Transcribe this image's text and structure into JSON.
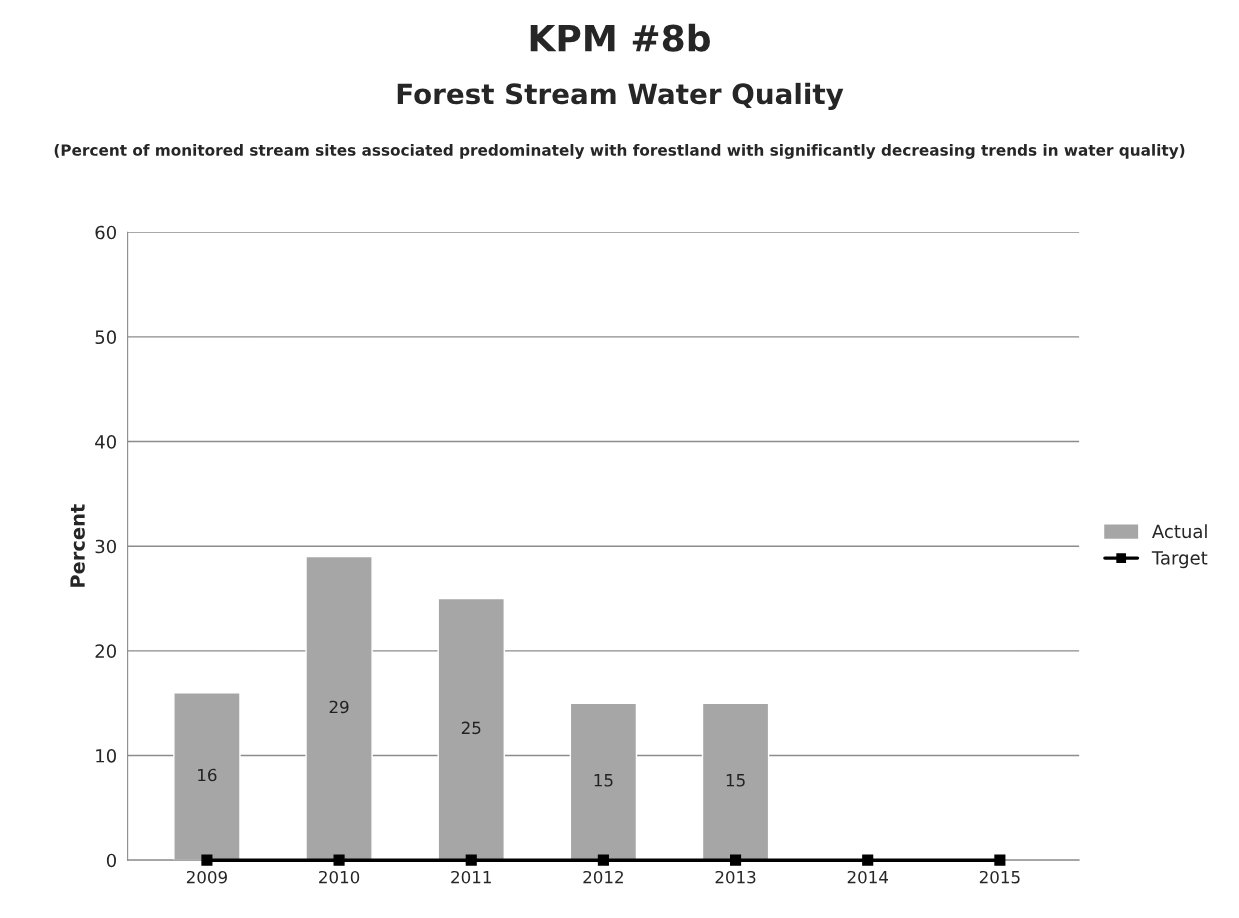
{
  "chart_data": {
    "type": "bar",
    "title": "KPM #8b",
    "subtitle": "Forest Stream Water Quality",
    "annotations": [
      "(Percent of monitored stream sites associated predominately with forestland with significantly decreasing trends in water quality)"
    ],
    "ylabel": "Percent",
    "categories": [
      "2009",
      "2010",
      "2011",
      "2012",
      "2013",
      "2014",
      "2015"
    ],
    "series": [
      {
        "name": "Actual",
        "color": "#a6a6a6",
        "values": [
          16,
          29,
          25,
          15,
          15,
          null,
          null
        ],
        "value_labels": [
          "16",
          "29",
          "25",
          "15",
          "15",
          null,
          null
        ]
      },
      {
        "name": "Target",
        "type": "line",
        "color": "#000000",
        "marker": "square",
        "values": [
          0,
          0,
          0,
          0,
          0,
          0,
          0
        ]
      }
    ],
    "ylim": [
      0,
      60
    ],
    "yticks": [
      0,
      10,
      20,
      30,
      40,
      50,
      60
    ],
    "grid": "y",
    "legend": "right"
  }
}
